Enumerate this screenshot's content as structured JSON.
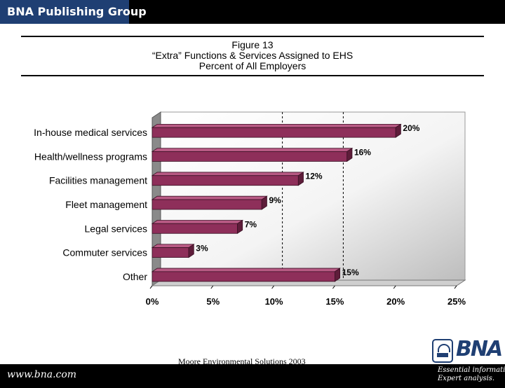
{
  "header": {
    "brand": "BNA Publishing Group"
  },
  "title": {
    "line1": "Figure 13",
    "line2": "“Extra” Functions & Services Assigned to EHS",
    "line3": "Percent of All Employers"
  },
  "chart_data": {
    "type": "bar",
    "orientation": "horizontal",
    "categories": [
      "In-house medical services",
      "Health/wellness programs",
      "Facilities management",
      "Fleet management",
      "Legal services",
      "Commuter services",
      "Other"
    ],
    "values": [
      20,
      16,
      12,
      9,
      7,
      3,
      15
    ],
    "value_labels": [
      "20%",
      "16%",
      "12%",
      "9%",
      "7%",
      "3%",
      "15%"
    ],
    "x_ticks": [
      "0%",
      "5%",
      "10%",
      "15%",
      "20%",
      "25%"
    ],
    "xlim": [
      0,
      25
    ],
    "bar_color": "#8e2f5a",
    "grid": "dashed vertical at 10% and 15%"
  },
  "footer": {
    "source": "Moore Environmental Solutions 2003",
    "url": "www.bna.com",
    "logo": "BNA",
    "tagline_1": "Essential information.",
    "tagline_2": "Expert analysis."
  }
}
